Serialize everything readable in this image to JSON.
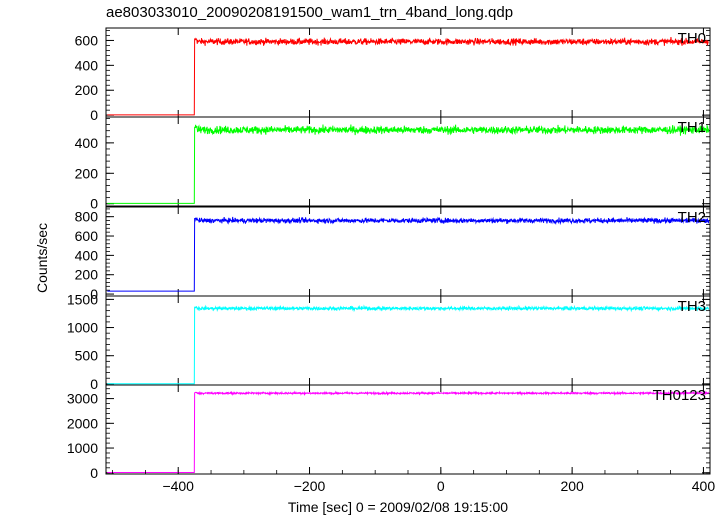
{
  "title": "ae803033010_20090208191500_wam1_trn_4band_long.qdp",
  "chart_data": {
    "type": "line",
    "title": "ae803033010_20090208191500_wam1_trn_4band_long.qdp",
    "xlabel": "Time [sec] 0 = 2009/02/08 19:15:00",
    "ylabel": "Counts/sec",
    "xlim": [
      -510,
      410
    ],
    "x_ticks": [
      -400,
      -200,
      0,
      200,
      400
    ],
    "x_tick_labels": [
      "−400",
      "−200",
      "0",
      "200",
      "400"
    ],
    "step_time": -375,
    "grid": false,
    "panels": [
      {
        "name": "TH0",
        "color": "#ff0000",
        "ylim": [
          -15,
          700
        ],
        "yticks": [
          0,
          200,
          400,
          600
        ],
        "ytick_labels": [
          "0",
          "200",
          "400",
          "600"
        ],
        "baseline": 2,
        "plateau": 590,
        "noise": 25,
        "spike": 630
      },
      {
        "name": "TH1",
        "color": "#00ff00",
        "ylim": [
          -15,
          570
        ],
        "yticks": [
          0,
          200,
          400
        ],
        "ytick_labels": [
          "0",
          "200",
          "400"
        ],
        "baseline": 2,
        "plateau": 485,
        "noise": 25,
        "spike": 530
      },
      {
        "name": "TH2",
        "color": "#0000ff",
        "ylim": [
          -20,
          900
        ],
        "yticks": [
          0,
          200,
          400,
          600,
          800
        ],
        "ytick_labels": [
          "0",
          "200",
          "400",
          "600",
          "800"
        ],
        "baseline": 30,
        "plateau": 760,
        "noise": 25,
        "spike": 830
      },
      {
        "name": "TH3",
        "color": "#00ffff",
        "ylim": [
          -20,
          1560
        ],
        "yticks": [
          0,
          500,
          1000,
          1500
        ],
        "ytick_labels": [
          "0",
          "500",
          "1000",
          "1500"
        ],
        "baseline": 3,
        "plateau": 1340,
        "noise": 30,
        "spike": 1420
      },
      {
        "name": "TH0123",
        "color": "#ff00ff",
        "ylim": [
          -50,
          3550
        ],
        "yticks": [
          0,
          1000,
          2000,
          3000
        ],
        "ytick_labels": [
          "0",
          "1000",
          "2000",
          "3000"
        ],
        "baseline": 10,
        "plateau": 3220,
        "noise": 35,
        "spike": 3390
      }
    ]
  }
}
